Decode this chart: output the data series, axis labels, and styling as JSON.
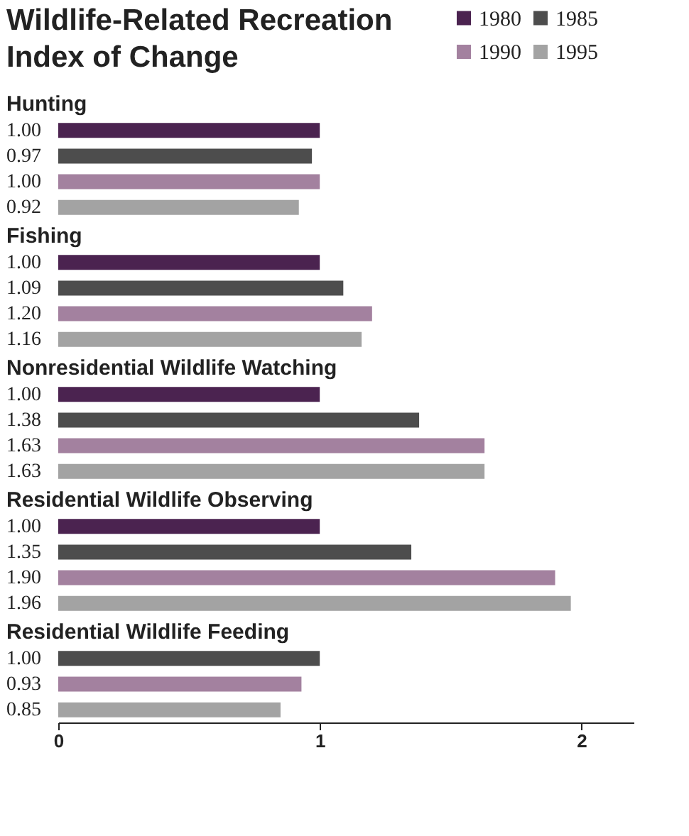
{
  "chart_data": {
    "type": "bar",
    "orientation": "horizontal",
    "title": "Wildlife-Related Recreation\nIndex of Change",
    "categories": [
      "Hunting",
      "Fishing",
      "Nonresidential Wildlife Watching",
      "Residential Wildlife Observing",
      "Residential Wildlife Feeding"
    ],
    "series": [
      {
        "name": "1980",
        "color": "#4b2350",
        "values": [
          1.0,
          1.0,
          1.0,
          1.0,
          null
        ],
        "value_labels": [
          "1.00",
          "1.00",
          "1.00",
          "1.00",
          null
        ]
      },
      {
        "name": "1985",
        "color": "#4d4d4d",
        "values": [
          0.97,
          1.09,
          1.38,
          1.35,
          1.0
        ],
        "value_labels": [
          "0.97",
          "1.09",
          "1.38",
          "1.35",
          "1.00"
        ]
      },
      {
        "name": "1990",
        "color": "#a3819f",
        "values": [
          1.0,
          1.2,
          1.63,
          1.9,
          0.93
        ],
        "value_labels": [
          "1.00",
          "1.20",
          "1.63",
          "1.90",
          "0.93"
        ]
      },
      {
        "name": "1995",
        "color": "#a3a3a3",
        "values": [
          0.92,
          1.16,
          1.63,
          1.96,
          0.85
        ],
        "value_labels": [
          "0.92",
          "1.16",
          "1.63",
          "1.96",
          "0.85"
        ]
      }
    ],
    "xlim": [
      0,
      2.2
    ],
    "xticks": [
      0,
      1,
      2
    ],
    "legend": "top right"
  }
}
